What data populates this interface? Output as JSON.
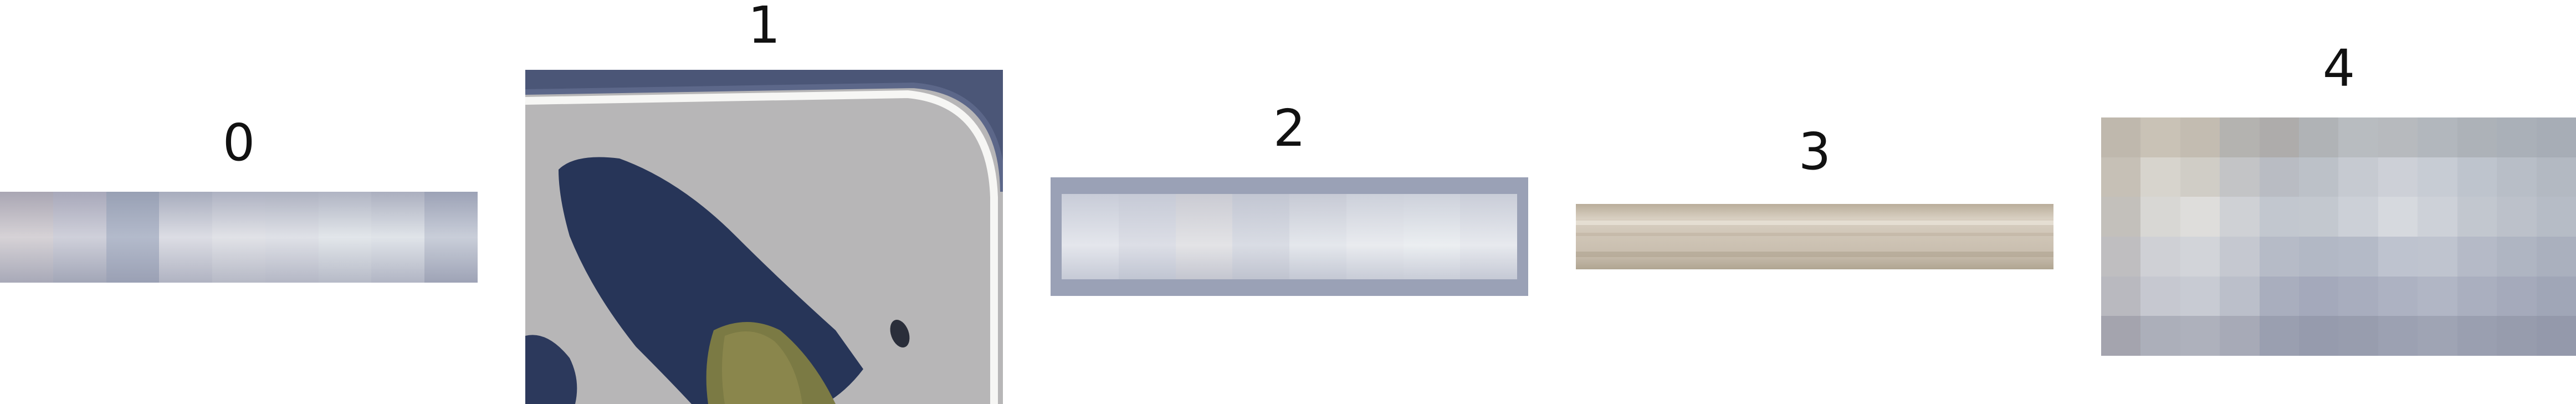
{
  "panels": [
    {
      "label": "0"
    },
    {
      "label": "1"
    },
    {
      "label": "2"
    },
    {
      "label": "3"
    },
    {
      "label": "4"
    }
  ]
}
